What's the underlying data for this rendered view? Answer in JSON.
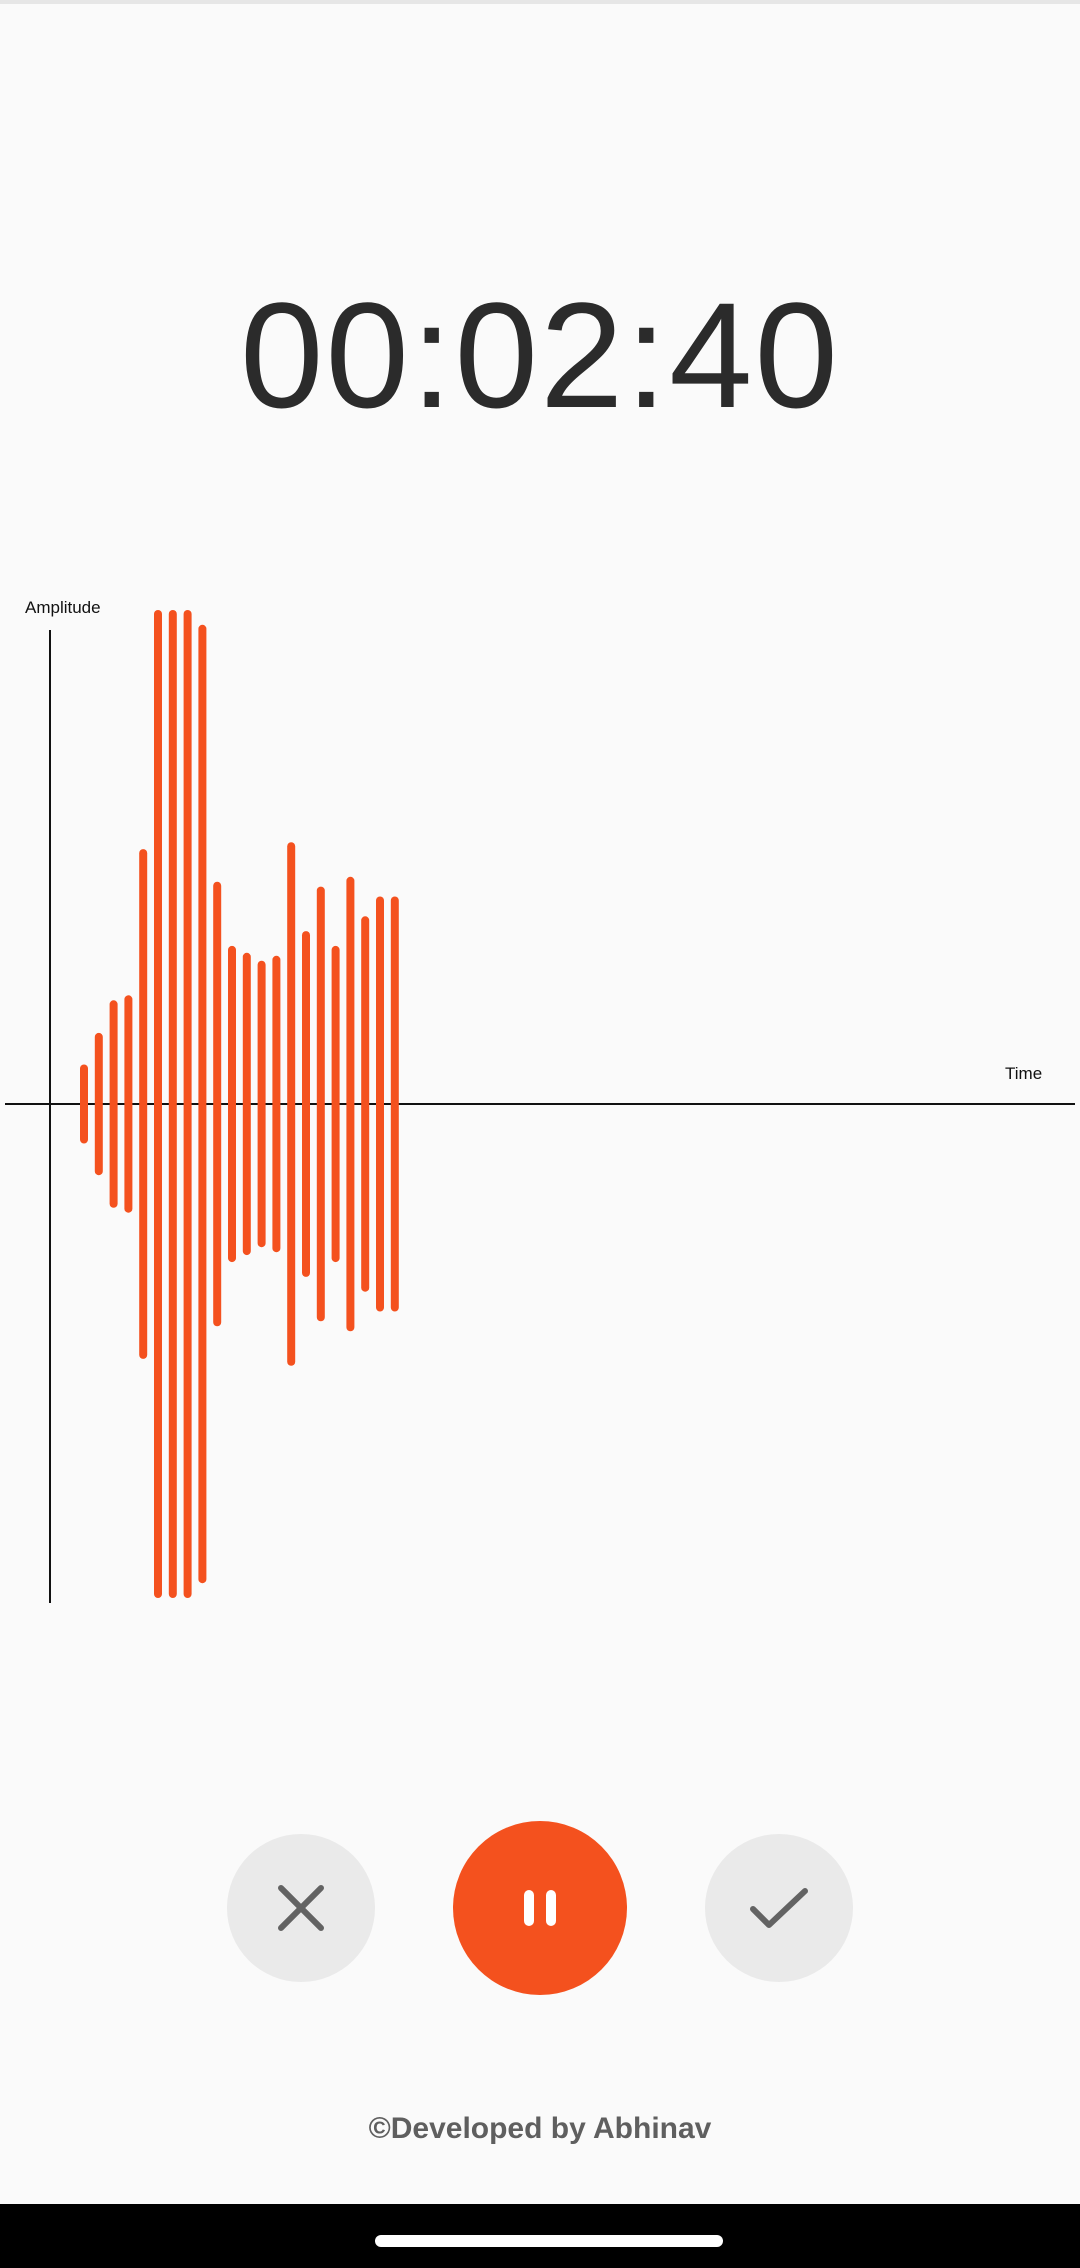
{
  "timer": {
    "value": "00:02:40"
  },
  "chart_data": {
    "type": "bar",
    "title": "",
    "xlabel": "Time",
    "ylabel": "Amplitude",
    "ylim": [
      -500,
      500
    ],
    "grid": false,
    "legend": "none",
    "color": "#f4511e",
    "values": [
      40,
      72,
      105,
      110,
      258,
      500,
      500,
      500,
      485,
      225,
      160,
      153,
      145,
      150,
      265,
      175,
      220,
      160,
      230,
      190,
      210,
      210
    ]
  },
  "controls": {
    "cancel_icon": "close-icon",
    "pause_icon": "pause-icon",
    "done_icon": "check-icon"
  },
  "footer": {
    "credit": "©Developed by Abhinav"
  },
  "colors": {
    "accent": "#f4511e",
    "secondary_button": "#eaeaea",
    "icon": "#636363",
    "text": "#2b2b2b"
  }
}
